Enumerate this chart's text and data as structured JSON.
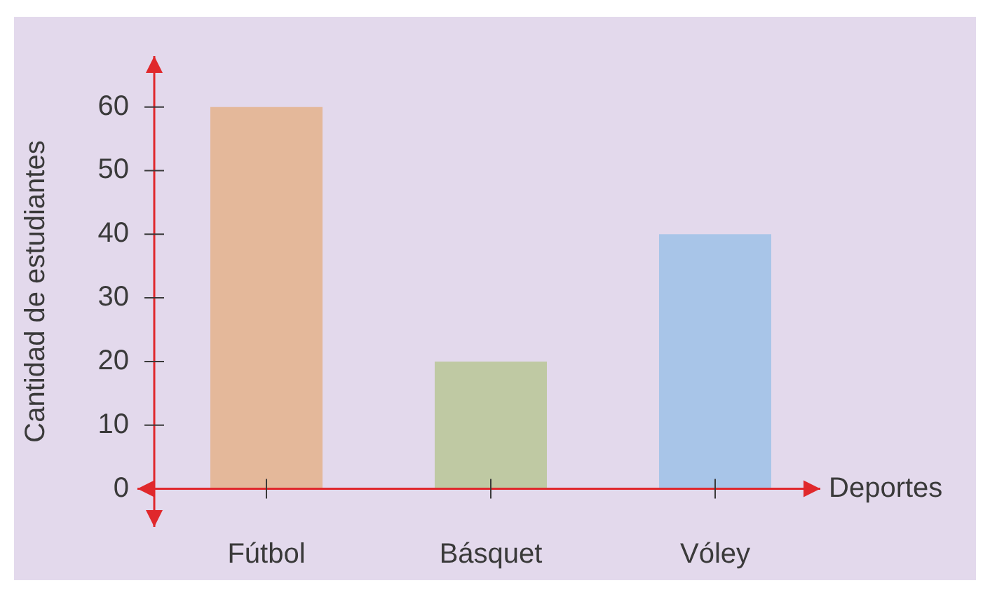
{
  "chart_data": {
    "type": "bar",
    "xlabel": "Deportes",
    "ylabel": "Cantidad de estudiantes",
    "categories": [
      "Fútbol",
      "Básquet",
      "Vóley"
    ],
    "values": [
      60,
      20,
      40
    ],
    "colors": [
      "#e4b89a",
      "#bfc9a3",
      "#a8c5e8"
    ],
    "ylim": [
      -6,
      68
    ],
    "yticks": [
      0,
      10,
      20,
      30,
      40,
      50,
      60
    ]
  }
}
